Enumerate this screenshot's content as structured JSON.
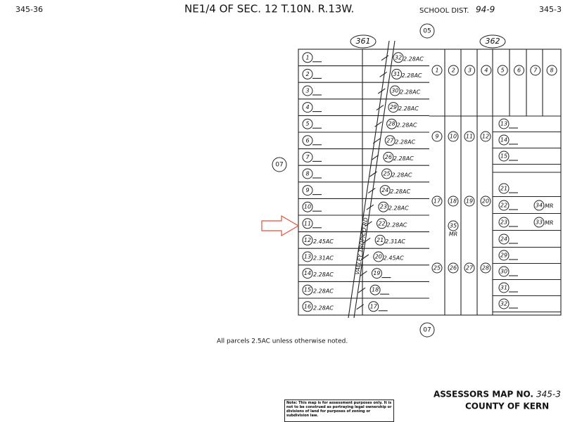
{
  "header": {
    "left_code": "345-36",
    "title": "NE1/4 OF SEC. 12 T.10N. R.13W.",
    "school_label": "SCHOOL DIST.",
    "school_dist": "94-9",
    "right_code": "345-3"
  },
  "labels": {
    "top_05": "05",
    "block_361": "361",
    "block_362": "362",
    "left_07": "07",
    "bottom_07": "07",
    "road": "VALLEY TROPICO RD"
  },
  "left_parcels": [
    {
      "id": "1"
    },
    {
      "id": "2"
    },
    {
      "id": "3"
    },
    {
      "id": "4"
    },
    {
      "id": "5"
    },
    {
      "id": "6"
    },
    {
      "id": "7"
    },
    {
      "id": "8"
    },
    {
      "id": "9"
    },
    {
      "id": "10"
    },
    {
      "id": "11"
    },
    {
      "id": "12",
      "area": "2.45AC"
    },
    {
      "id": "13",
      "area": "2.31AC"
    },
    {
      "id": "14",
      "area": "2.28AC"
    },
    {
      "id": "15",
      "area": "2.28AC"
    },
    {
      "id": "16",
      "area": "2.28AC"
    }
  ],
  "middle_parcels": [
    {
      "id": "32",
      "area": "2.28AC"
    },
    {
      "id": "31",
      "area": "2.28AC"
    },
    {
      "id": "30",
      "area": "2.28AC"
    },
    {
      "id": "29",
      "area": "2.28AC"
    },
    {
      "id": "28",
      "area": "2.28AC"
    },
    {
      "id": "27",
      "area": "2.28AC"
    },
    {
      "id": "26",
      "area": "2.28AC"
    },
    {
      "id": "25",
      "area": "2.28AC"
    },
    {
      "id": "24",
      "area": "2.28AC"
    },
    {
      "id": "23",
      "area": "2.28AC"
    },
    {
      "id": "22",
      "area": "2.28AC"
    },
    {
      "id": "21",
      "area": "2.31AC"
    },
    {
      "id": "20",
      "area": "2.45AC"
    },
    {
      "id": "19"
    },
    {
      "id": "18"
    },
    {
      "id": "17"
    }
  ],
  "right_top": [
    "1",
    "2",
    "3",
    "4",
    "5",
    "6",
    "7",
    "8"
  ],
  "right_interior": [
    [
      "9",
      "10",
      "11",
      "12"
    ],
    [
      "17",
      "18",
      "19",
      "20"
    ],
    [
      "25",
      "26",
      "27",
      "28"
    ]
  ],
  "right_column": [
    "13",
    "14",
    "15",
    "21",
    "22",
    "23",
    "24",
    "29",
    "30",
    "31",
    "32"
  ],
  "mr_parcels": [
    {
      "id": "34",
      "note": "MR"
    },
    {
      "id": "33",
      "note": "MR"
    },
    {
      "id": "35",
      "note": "MR"
    }
  ],
  "footer": {
    "note": "All parcels 2.5AC unless otherwise noted.",
    "map_title": "ASSESSORS MAP NO.",
    "map_no": "345-3",
    "county": "COUNTY OF KERN",
    "disclaimer": "Note: This map is for assessment purposes only. It is not to be construed as portraying legal ownership or divisions of land for purposes of zoning or subdivision law."
  }
}
